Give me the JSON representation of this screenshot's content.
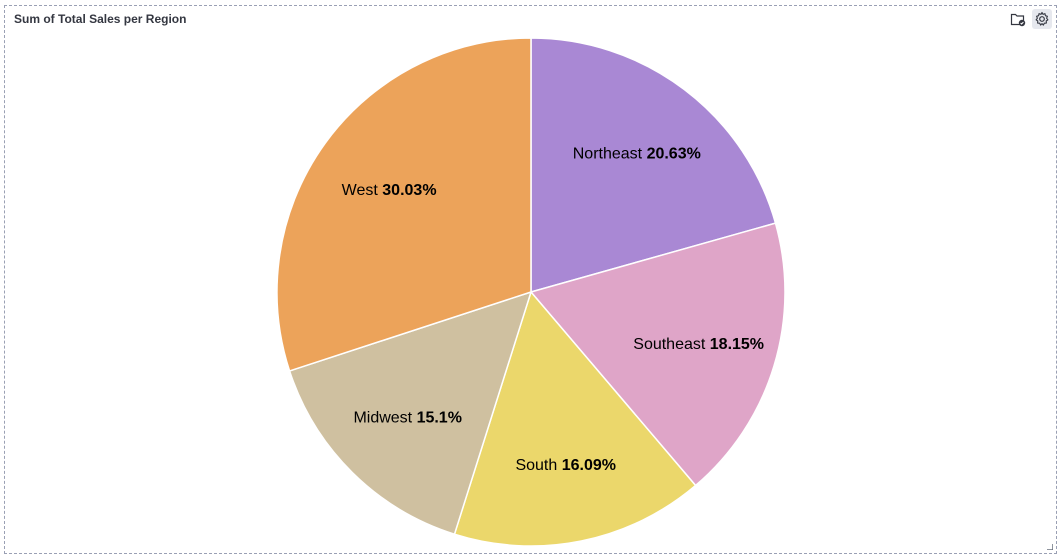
{
  "panel": {
    "title": "Sum of Total Sales per Region"
  },
  "toolbar": {
    "icons": [
      "folder-check-icon",
      "gear-icon"
    ]
  },
  "chart_data": {
    "type": "pie",
    "title": "Sum of Total Sales per Region",
    "start_angle_deg": 0,
    "direction": "clockwise",
    "slices": [
      {
        "label": "Northeast",
        "value": 20.63,
        "display": "20.63%",
        "color": "#a988d4"
      },
      {
        "label": "Southeast",
        "value": 18.15,
        "display": "18.15%",
        "color": "#dfa5c8"
      },
      {
        "label": "South",
        "value": 16.09,
        "display": "16.09%",
        "color": "#ebd76b"
      },
      {
        "label": "Midwest",
        "value": 15.1,
        "display": "15.1%",
        "color": "#cfc0a0"
      },
      {
        "label": "West",
        "value": 30.03,
        "display": "30.03%",
        "color": "#eca35a"
      }
    ]
  }
}
